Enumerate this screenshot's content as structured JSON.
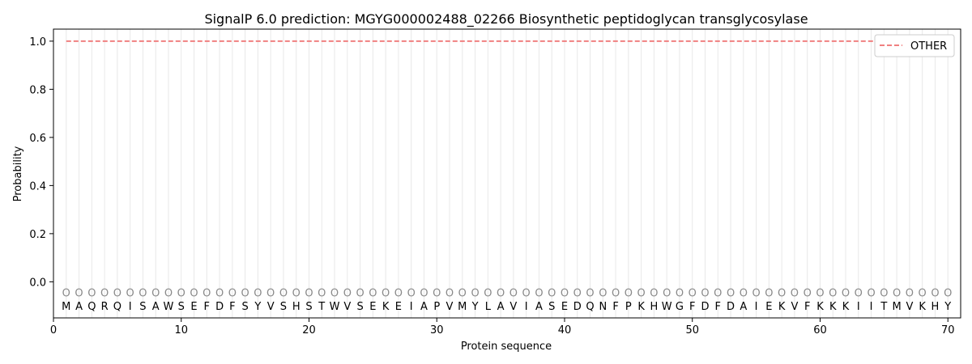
{
  "chart_data": {
    "type": "line",
    "title": "SignalP 6.0 prediction: MGYG000002488_02266 Biosynthetic peptidoglycan transglycosylase",
    "xlabel": "Protein sequence",
    "ylabel": "Probability",
    "xlim": [
      0,
      71
    ],
    "ylim": [
      -0.15,
      1.05
    ],
    "xticks": [
      0,
      10,
      20,
      30,
      40,
      50,
      60,
      70
    ],
    "yticks": [
      0.0,
      0.2,
      0.4,
      0.6,
      0.8,
      1.0
    ],
    "ytick_labels": [
      "0.0",
      "0.2",
      "0.4",
      "0.6",
      "0.8",
      "1.0"
    ],
    "grid": "vertical lines at each residue",
    "legend": {
      "position": "top-right",
      "entries": [
        "OTHER"
      ]
    },
    "sequence": [
      "M",
      "A",
      "Q",
      "R",
      "Q",
      "I",
      "S",
      "A",
      "W",
      "S",
      "E",
      "F",
      "D",
      "F",
      "S",
      "Y",
      "V",
      "S",
      "H",
      "S",
      "T",
      "W",
      "V",
      "S",
      "E",
      "K",
      "E",
      "I",
      "A",
      "P",
      "V",
      "M",
      "Y",
      "L",
      "A",
      "V",
      "I",
      "A",
      "S",
      "E",
      "D",
      "Q",
      "N",
      "F",
      "P",
      "K",
      "H",
      "W",
      "G",
      "F",
      "D",
      "F",
      "D",
      "A",
      "I",
      "E",
      "K",
      "V",
      "F",
      "K",
      "K",
      "K",
      "I",
      "I",
      "T",
      "M",
      "V",
      "K",
      "H",
      "Y"
    ],
    "predicted_labels": [
      "O",
      "O",
      "O",
      "O",
      "O",
      "O",
      "O",
      "O",
      "O",
      "O",
      "O",
      "O",
      "O",
      "O",
      "O",
      "O",
      "O",
      "O",
      "O",
      "O",
      "O",
      "O",
      "O",
      "O",
      "O",
      "O",
      "O",
      "O",
      "O",
      "O",
      "O",
      "O",
      "O",
      "O",
      "O",
      "O",
      "O",
      "O",
      "O",
      "O",
      "O",
      "O",
      "O",
      "O",
      "O",
      "O",
      "O",
      "O",
      "O",
      "O",
      "O",
      "O",
      "O",
      "O",
      "O",
      "O",
      "O",
      "O",
      "O",
      "O",
      "O",
      "O",
      "O",
      "O",
      "O",
      "O",
      "O",
      "O",
      "O",
      "O"
    ],
    "series": [
      {
        "name": "OTHER",
        "color": "#f08080",
        "style": "dashed",
        "x_start": 1,
        "x_end": 70,
        "values": [
          1,
          1,
          1,
          1,
          1,
          1,
          1,
          1,
          1,
          1,
          1,
          1,
          1,
          1,
          1,
          1,
          1,
          1,
          1,
          1,
          1,
          1,
          1,
          1,
          1,
          1,
          1,
          1,
          1,
          1,
          1,
          1,
          1,
          1,
          1,
          1,
          1,
          1,
          1,
          1,
          1,
          1,
          1,
          1,
          1,
          1,
          1,
          1,
          1,
          1,
          1,
          1,
          1,
          1,
          1,
          1,
          1,
          1,
          1,
          1,
          1,
          1,
          1,
          1,
          1,
          1,
          1,
          1,
          1,
          1
        ]
      }
    ]
  }
}
